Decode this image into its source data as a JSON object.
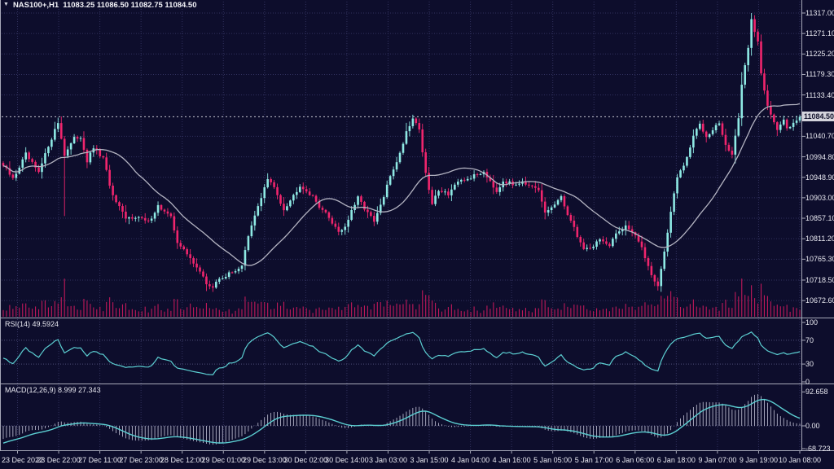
{
  "window": {
    "dropdown_icon": "▼",
    "symbol_tf": "NAS100+,H1",
    "quotes": "11083.25 11086.50 11082.75 11084.50"
  },
  "chart_data": {
    "type": "candlestick",
    "symbol": "NAS100+",
    "timeframe": "H1",
    "quote": {
      "open": "11083.25",
      "high": "11086.50",
      "low": "11082.75",
      "close": "11084.50"
    },
    "bars": 248,
    "price_axis": {
      "max": 11317.0,
      "min": 10672.6,
      "current": "11084.50",
      "current_value": 11084.5,
      "labels": [
        [
          "11317.00",
          11317.0
        ],
        [
          "11271.10",
          11271.1
        ],
        [
          "11225.20",
          11225.2
        ],
        [
          "11179.30",
          11179.3
        ],
        [
          "11133.40",
          11133.4
        ],
        [
          "11040.70",
          11040.7
        ],
        [
          "10994.80",
          10994.8
        ],
        [
          "10948.90",
          10948.9
        ],
        [
          "10903.00",
          10903.0
        ],
        [
          "10857.10",
          10857.1
        ],
        [
          "10811.20",
          10811.2
        ],
        [
          "10765.30",
          10765.3
        ],
        [
          "10718.50",
          10718.5
        ],
        [
          "10672.60",
          10672.6
        ]
      ]
    },
    "time_axis": {
      "labels": [
        "23 Dec 2022",
        "23 Dec 22:00",
        "27 Dec 11:00",
        "27 Dec 23:00",
        "28 Dec 12:00",
        "29 Dec 01:00",
        "29 Dec 13:00",
        "30 Dec 02:00",
        "30 Dec 14:00",
        "3 Jan 03:00",
        "3 Jan 15:00",
        "4 Jan 04:00",
        "4 Jan 16:00",
        "5 Jan 05:00",
        "5 Jan 17:00",
        "6 Jan 06:00",
        "6 Jan 18:00",
        "9 Jan 07:00",
        "9 Jan 19:00",
        "10 Jan 08:00"
      ]
    },
    "close_path_anchors": [
      [
        0,
        10975
      ],
      [
        3,
        10945
      ],
      [
        7,
        11000
      ],
      [
        11,
        10958
      ],
      [
        14,
        11020
      ],
      [
        17,
        11072
      ],
      [
        19,
        11000
      ],
      [
        22,
        11035
      ],
      [
        24,
        11040
      ],
      [
        26,
        10985
      ],
      [
        28,
        11015
      ],
      [
        31,
        10990
      ],
      [
        34,
        10905
      ],
      [
        38,
        10855
      ],
      [
        41,
        10862
      ],
      [
        45,
        10848
      ],
      [
        48,
        10885
      ],
      [
        52,
        10858
      ],
      [
        54,
        10805
      ],
      [
        57,
        10775
      ],
      [
        60,
        10750
      ],
      [
        63,
        10710
      ],
      [
        65,
        10702
      ],
      [
        67,
        10722
      ],
      [
        71,
        10735
      ],
      [
        74,
        10752
      ],
      [
        76,
        10815
      ],
      [
        79,
        10885
      ],
      [
        82,
        10945
      ],
      [
        84,
        10925
      ],
      [
        87,
        10878
      ],
      [
        90,
        10908
      ],
      [
        92,
        10932
      ],
      [
        95,
        10912
      ],
      [
        98,
        10885
      ],
      [
        101,
        10858
      ],
      [
        104,
        10828
      ],
      [
        106,
        10838
      ],
      [
        108,
        10872
      ],
      [
        110,
        10902
      ],
      [
        113,
        10870
      ],
      [
        115,
        10848
      ],
      [
        118,
        10905
      ],
      [
        120,
        10952
      ],
      [
        123,
        11002
      ],
      [
        125,
        11052
      ],
      [
        127,
        11082
      ],
      [
        129,
        11058
      ],
      [
        131,
        10955
      ],
      [
        133,
        10888
      ],
      [
        135,
        10922
      ],
      [
        138,
        10912
      ],
      [
        140,
        10932
      ],
      [
        143,
        10942
      ],
      [
        146,
        10952
      ],
      [
        149,
        10962
      ],
      [
        151,
        10942
      ],
      [
        153,
        10918
      ],
      [
        155,
        10942
      ],
      [
        158,
        10932
      ],
      [
        161,
        10942
      ],
      [
        163,
        10928
      ],
      [
        166,
        10918
      ],
      [
        168,
        10868
      ],
      [
        170,
        10882
      ],
      [
        173,
        10902
      ],
      [
        175,
        10868
      ],
      [
        178,
        10818
      ],
      [
        180,
        10788
      ],
      [
        183,
        10795
      ],
      [
        185,
        10812
      ],
      [
        188,
        10792
      ],
      [
        190,
        10822
      ],
      [
        193,
        10842
      ],
      [
        196,
        10820
      ],
      [
        198,
        10788
      ],
      [
        201,
        10732
      ],
      [
        203,
        10705
      ],
      [
        205,
        10782
      ],
      [
        207,
        10872
      ],
      [
        209,
        10948
      ],
      [
        212,
        10990
      ],
      [
        214,
        11042
      ],
      [
        216,
        11068
      ],
      [
        218,
        11042
      ],
      [
        220,
        11058
      ],
      [
        222,
        11070
      ],
      [
        224,
        11018
      ],
      [
        226,
        11002
      ],
      [
        228,
        11082
      ],
      [
        229,
        11152
      ],
      [
        231,
        11242
      ],
      [
        232,
        11302
      ],
      [
        234,
        11252
      ],
      [
        235,
        11182
      ],
      [
        237,
        11112
      ],
      [
        238,
        11092
      ],
      [
        240,
        11052
      ],
      [
        242,
        11078
      ],
      [
        243,
        11058
      ],
      [
        245,
        11074
      ],
      [
        247,
        11084.5
      ]
    ],
    "special_wicks": [
      [
        19,
        "low",
        10862
      ],
      [
        65,
        "low",
        10692
      ],
      [
        203,
        "low",
        10695
      ],
      [
        232,
        "high",
        11317
      ]
    ],
    "indicators": {
      "ma": {
        "type": "SMA",
        "period": 24
      },
      "rsi": {
        "label": "RSI(14) 49.5924",
        "period": 14,
        "value": 49.5924,
        "axis": [
          [
            "100",
            100
          ],
          [
            "70",
            70
          ],
          [
            "30",
            30
          ],
          [
            "0",
            0
          ]
        ],
        "levels": [
          70,
          30
        ]
      },
      "macd": {
        "label": "MACD(12,26,9) 8.999 27.343",
        "fast": 12,
        "slow": 26,
        "signal": 9,
        "macd_value": 8.999,
        "signal_value": 27.343,
        "axis": [
          [
            "92.658",
            92.658
          ],
          [
            "0.00",
            0
          ],
          [
            "-68.723",
            -68.723
          ]
        ]
      }
    },
    "colors": {
      "background": "#0d0d2c",
      "bull": "#8ee9e4",
      "bear": "#f0256d",
      "ma_line": "#b4b4c2",
      "indicator_line": "#5ccfd2",
      "histogram": "#c9c9dc",
      "volume": "#c0195a",
      "grid": "#31315e",
      "level_line": "#50507a",
      "axis_text": "#e8e8f0",
      "separator": "#a6a8b8",
      "price_line": "#c9c9d4",
      "price_tag_bg": "#d4d4dc",
      "price_tag_text": "#14142e"
    }
  }
}
